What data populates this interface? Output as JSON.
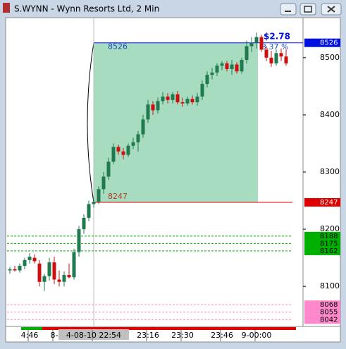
{
  "window": {
    "title": "S.WYNN - Wynn Resorts Ltd, 2 Min"
  },
  "chart_data": {
    "type": "candlestick",
    "categories": [
      null,
      null,
      null,
      null,
      "4:46",
      null,
      null,
      null,
      null,
      "8-",
      null,
      null,
      null,
      null,
      null,
      null,
      null,
      "4-08-10 22:54",
      null,
      null,
      null,
      null,
      null,
      null,
      null,
      null,
      null,
      null,
      "23:16",
      null,
      null,
      null,
      null,
      null,
      null,
      "23:30",
      null,
      null,
      null,
      null,
      null,
      null,
      null,
      "23:46",
      null,
      null,
      null,
      null,
      null,
      null,
      "9-00:00",
      null,
      null,
      null,
      null,
      null,
      null
    ],
    "open": [
      8128,
      8130,
      8128,
      8136,
      8146,
      8150,
      8140,
      8108,
      8118,
      8142,
      8112,
      8108,
      8120,
      8116,
      8160,
      8200,
      8220,
      8244,
      8248,
      8270,
      8292,
      8318,
      8344,
      8336,
      8330,
      8346,
      8352,
      8366,
      8392,
      8418,
      8408,
      8424,
      8432,
      8426,
      8436,
      8422,
      8420,
      8428,
      8422,
      8432,
      8454,
      8470,
      8474,
      8486,
      8490,
      8480,
      8488,
      8476,
      8496,
      8520,
      8526,
      8536,
      8514,
      8500,
      8490,
      8508,
      8502
    ],
    "high": [
      8134,
      8136,
      8140,
      8150,
      8158,
      8156,
      8146,
      8122,
      8150,
      8152,
      8128,
      8126,
      8140,
      8166,
      8206,
      8226,
      8250,
      8252,
      8275,
      8300,
      8325,
      8350,
      8348,
      8342,
      8350,
      8360,
      8372,
      8400,
      8426,
      8424,
      8430,
      8440,
      8438,
      8440,
      8442,
      8430,
      8432,
      8434,
      8438,
      8460,
      8476,
      8482,
      8490,
      8494,
      8494,
      8496,
      8492,
      8500,
      8530,
      8536,
      8544,
      8540,
      8520,
      8512,
      8514,
      8516,
      8514
    ],
    "low": [
      8122,
      8126,
      8124,
      8130,
      8140,
      8140,
      8100,
      8092,
      8110,
      8104,
      8100,
      8100,
      8114,
      8112,
      8152,
      8192,
      8214,
      8238,
      8244,
      8262,
      8286,
      8314,
      8330,
      8322,
      8326,
      8340,
      8336,
      8360,
      8386,
      8400,
      8402,
      8418,
      8420,
      8420,
      8418,
      8414,
      8416,
      8418,
      8416,
      8426,
      8448,
      8462,
      8468,
      8478,
      8476,
      8470,
      8472,
      8472,
      8490,
      8510,
      8516,
      8510,
      8494,
      8484,
      8486,
      8494,
      8486
    ],
    "close": [
      8130,
      8128,
      8136,
      8146,
      8152,
      8144,
      8108,
      8118,
      8142,
      8112,
      8108,
      8120,
      8116,
      8160,
      8200,
      8220,
      8244,
      8248,
      8270,
      8292,
      8318,
      8344,
      8336,
      8330,
      8346,
      8352,
      8366,
      8392,
      8418,
      8408,
      8424,
      8432,
      8426,
      8436,
      8422,
      8420,
      8428,
      8422,
      8432,
      8454,
      8470,
      8474,
      8486,
      8490,
      8480,
      8488,
      8476,
      8496,
      8520,
      8526,
      8536,
      8514,
      8500,
      8490,
      8508,
      8502,
      8490
    ],
    "up_color": "#1f7a4f",
    "down_color": "#cc1010",
    "ylim": [
      8030,
      8570
    ],
    "yticks": [
      8100,
      8200,
      8300,
      8400,
      8500
    ],
    "measure": {
      "range": [
        8247,
        8526
      ],
      "change": "$2.78",
      "percent": "3.37 %",
      "color": "#a8dcc0"
    },
    "levels": [
      {
        "value": 8526,
        "color": "#0010e0",
        "style": "solid"
      },
      {
        "value": 8247,
        "color": "#e00000",
        "style": "solid"
      },
      {
        "value": 8188,
        "color": "#00b000",
        "style": "dashed"
      },
      {
        "value": 8175,
        "color": "#00b000",
        "style": "dashed"
      },
      {
        "value": 8162,
        "color": "#00b000",
        "style": "dashed"
      },
      {
        "value": 8068,
        "color": "#ff88cc",
        "style": "dashed"
      },
      {
        "value": 8055,
        "color": "#ff88cc",
        "style": "dashed"
      },
      {
        "value": 8042,
        "color": "#ff88cc",
        "style": "dashed"
      }
    ]
  }
}
